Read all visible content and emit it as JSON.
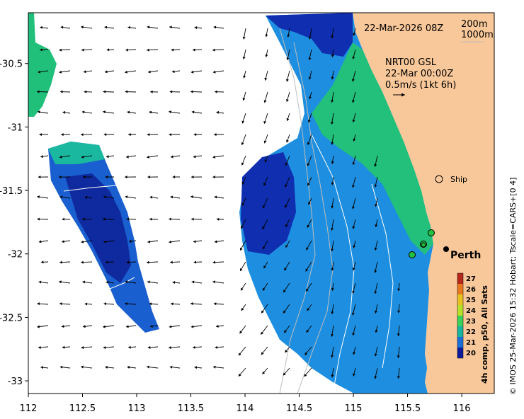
{
  "header": {
    "timestamp": "22-Mar-2026 08Z",
    "contour_a": "200m",
    "contour_b": "1000m"
  },
  "current_info": {
    "line1": "NRT00 GSL",
    "line2": "22-Mar 00:00Z",
    "line3": "0.5m/s (1kt 6h)"
  },
  "colorbar": {
    "title": "4h comp, p50, All Sats",
    "ticks": [
      "27",
      "26",
      "25",
      "24",
      "23",
      "22",
      "21",
      "20"
    ],
    "colors": [
      "#b5271a",
      "#e8781e",
      "#e6c320",
      "#b6e02a",
      "#3ad05a",
      "#17b5a0",
      "#1d6fd8",
      "#0d1b9a"
    ]
  },
  "places": {
    "city": "Perth",
    "ship": "Ship"
  },
  "credit": "© IMOS 25-Mar-2026 15:32 Hobart; Tscale=CARS+[0 4]",
  "axes": {
    "x_ticks": [
      "112",
      "112.5",
      "113",
      "113.5",
      "114",
      "114.5",
      "115",
      "115.5",
      "116"
    ],
    "y_ticks": [
      "-30.5",
      "-31",
      "-31.5",
      "-32",
      "-32.5",
      "-33"
    ],
    "lon_range": [
      112.0,
      116.3
    ],
    "lat_range": [
      -33.1,
      -30.1
    ]
  },
  "colors": {
    "land": "#f9c89a",
    "sst_warm": "#22c07a",
    "sst_mid": "#1e8fe0",
    "sst_cool": "#0f2fb0",
    "station_green": "#22c040"
  }
}
